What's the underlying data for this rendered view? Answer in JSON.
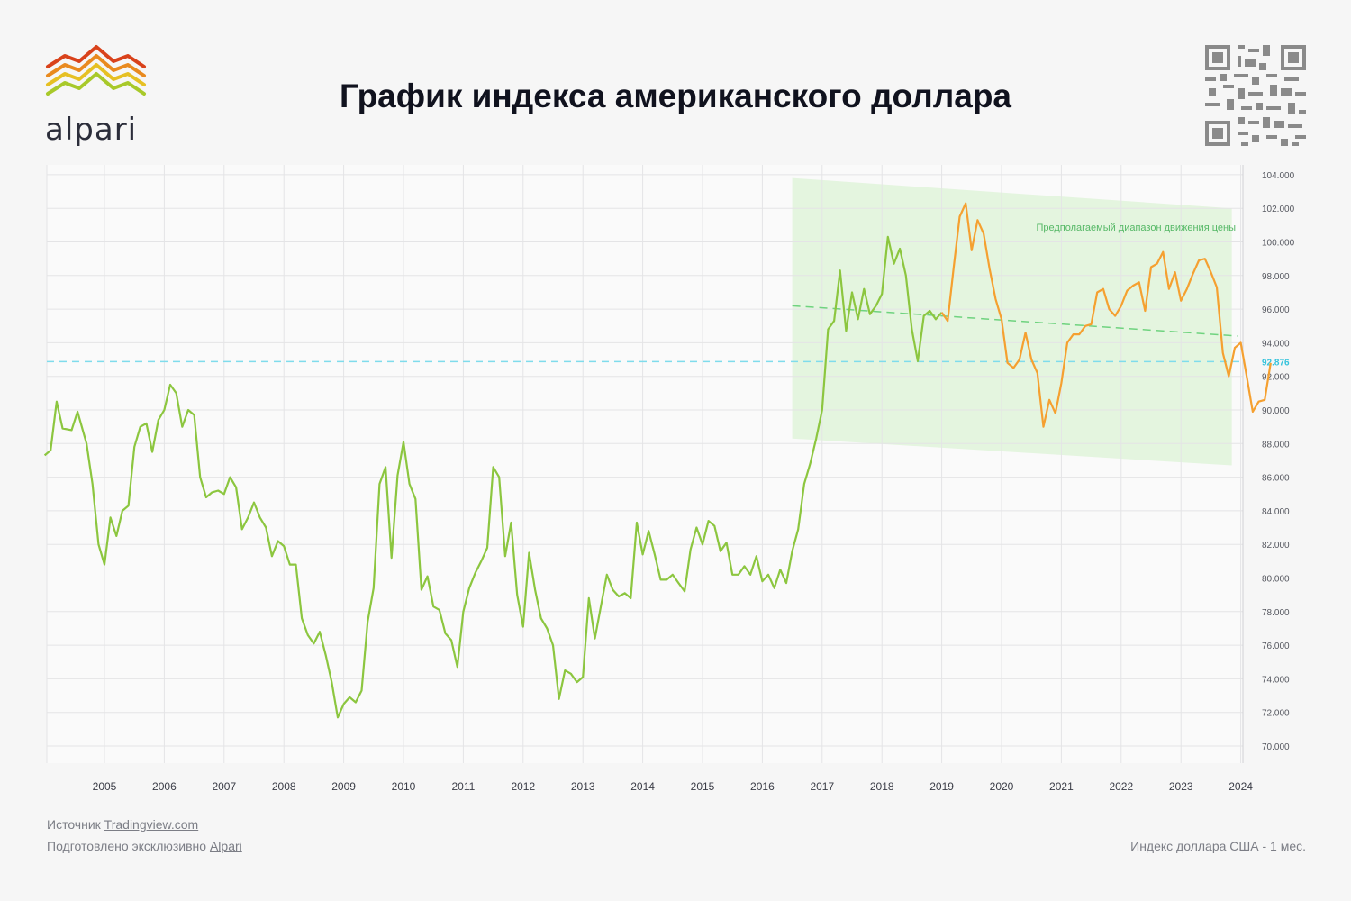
{
  "brand": {
    "name": "alpari",
    "colors": [
      "#d9421b",
      "#e98a1f",
      "#e6c023",
      "#a8c92a",
      "#7ab82f"
    ]
  },
  "header": {
    "title": "График индекса американского доллара"
  },
  "footer": {
    "source_label": "Источник",
    "source_link": "Tradingview.com",
    "prepared_label": "Подготовлено эксклюзивно",
    "prepared_link": "Alpari",
    "instrument": "Индекс доллара США - 1 мес."
  },
  "chart_data": {
    "type": "line",
    "title": "График индекса американского доллара",
    "xlabel": "",
    "ylabel": "",
    "x_range": [
      2004.0,
      2024.0
    ],
    "ylim": [
      69.0,
      105.0
    ],
    "x_ticks": [
      "2005",
      "2006",
      "2007",
      "2008",
      "2009",
      "2010",
      "2011",
      "2012",
      "2013",
      "2014",
      "2015",
      "2016",
      "2017",
      "2018",
      "2019",
      "2020",
      "2021",
      "2022",
      "2023",
      "2024"
    ],
    "y_ticks": [
      "70.000",
      "72.000",
      "74.000",
      "76.000",
      "78.000",
      "80.000",
      "82.000",
      "84.000",
      "86.000",
      "88.000",
      "90.000",
      "92.000",
      "94.000",
      "96.000",
      "98.000",
      "100.000",
      "102.000",
      "104.000"
    ],
    "grid": true,
    "colors": {
      "history": "#8cc63f",
      "recent": "#f5a030",
      "current_level": "#7fdcec",
      "trend": "#6fd37f",
      "range_fill": "#d2f0c8"
    },
    "current_level": {
      "value": 92.876,
      "label": "92.876"
    },
    "range_annotation": "Предполагаемый диапазон движения цены",
    "forecast_range": {
      "upper": [
        [
          2016.5,
          103.8
        ],
        [
          2023.85,
          102.0
        ]
      ],
      "lower": [
        [
          2016.5,
          88.3
        ],
        [
          2023.85,
          86.7
        ]
      ]
    },
    "trend_line": [
      [
        2016.5,
        96.2
      ],
      [
        2023.95,
        94.4
      ]
    ],
    "series": [
      {
        "values": [
          [
            2004.0,
            87.3
          ],
          [
            2004.1,
            87.6
          ],
          [
            2004.2,
            90.5
          ],
          [
            2004.3,
            88.9
          ],
          [
            2004.45,
            88.8
          ],
          [
            2004.55,
            89.9
          ],
          [
            2004.7,
            88.0
          ],
          [
            2004.8,
            85.6
          ],
          [
            2004.9,
            82.0
          ],
          [
            2005.0,
            80.8
          ],
          [
            2005.1,
            83.6
          ],
          [
            2005.2,
            82.5
          ],
          [
            2005.3,
            84.0
          ],
          [
            2005.4,
            84.3
          ],
          [
            2005.5,
            87.8
          ],
          [
            2005.6,
            89.0
          ],
          [
            2005.7,
            89.2
          ],
          [
            2005.8,
            87.5
          ],
          [
            2005.9,
            89.4
          ],
          [
            2006.0,
            90.0
          ],
          [
            2006.1,
            91.5
          ],
          [
            2006.2,
            91.0
          ],
          [
            2006.3,
            89.0
          ],
          [
            2006.4,
            90.0
          ],
          [
            2006.5,
            89.7
          ],
          [
            2006.6,
            86.0
          ],
          [
            2006.7,
            84.8
          ],
          [
            2006.8,
            85.1
          ],
          [
            2006.9,
            85.2
          ],
          [
            2007.0,
            85.0
          ],
          [
            2007.1,
            86.0
          ],
          [
            2007.2,
            85.4
          ],
          [
            2007.3,
            82.9
          ],
          [
            2007.4,
            83.6
          ],
          [
            2007.5,
            84.5
          ],
          [
            2007.6,
            83.6
          ],
          [
            2007.7,
            83.0
          ],
          [
            2007.8,
            81.3
          ],
          [
            2007.9,
            82.2
          ],
          [
            2008.0,
            81.9
          ],
          [
            2008.1,
            80.8
          ],
          [
            2008.2,
            80.8
          ],
          [
            2008.3,
            77.6
          ],
          [
            2008.4,
            76.6
          ],
          [
            2008.5,
            76.1
          ],
          [
            2008.6,
            76.8
          ],
          [
            2008.7,
            75.4
          ],
          [
            2008.8,
            73.8
          ],
          [
            2008.9,
            71.7
          ],
          [
            2009.0,
            72.5
          ],
          [
            2009.1,
            72.9
          ],
          [
            2009.2,
            72.6
          ],
          [
            2009.3,
            73.3
          ],
          [
            2009.4,
            77.4
          ],
          [
            2009.5,
            79.4
          ],
          [
            2009.6,
            85.6
          ],
          [
            2009.7,
            86.6
          ],
          [
            2009.8,
            81.2
          ],
          [
            2009.9,
            86.1
          ],
          [
            2010.0,
            88.1
          ],
          [
            2010.1,
            85.6
          ],
          [
            2010.2,
            84.7
          ],
          [
            2010.3,
            79.3
          ],
          [
            2010.4,
            80.1
          ],
          [
            2010.5,
            78.3
          ],
          [
            2010.6,
            78.1
          ],
          [
            2010.7,
            76.7
          ],
          [
            2010.8,
            76.3
          ],
          [
            2010.9,
            74.7
          ],
          [
            2011.0,
            78.0
          ],
          [
            2011.1,
            79.4
          ],
          [
            2011.2,
            80.3
          ],
          [
            2011.3,
            81.0
          ],
          [
            2011.4,
            81.8
          ],
          [
            2011.5,
            86.6
          ],
          [
            2011.6,
            86.0
          ],
          [
            2011.7,
            81.3
          ],
          [
            2011.8,
            83.3
          ],
          [
            2011.9,
            79.0
          ],
          [
            2012.0,
            77.1
          ],
          [
            2012.1,
            81.5
          ],
          [
            2012.2,
            79.3
          ],
          [
            2012.3,
            77.6
          ],
          [
            2012.4,
            77.0
          ],
          [
            2012.5,
            76.0
          ],
          [
            2012.6,
            72.8
          ],
          [
            2012.7,
            74.5
          ],
          [
            2012.8,
            74.3
          ],
          [
            2012.9,
            73.8
          ],
          [
            2013.0,
            74.1
          ],
          [
            2013.1,
            78.8
          ],
          [
            2013.2,
            76.4
          ],
          [
            2013.3,
            78.3
          ],
          [
            2013.4,
            80.2
          ],
          [
            2013.5,
            79.3
          ],
          [
            2013.6,
            78.9
          ],
          [
            2013.7,
            79.1
          ],
          [
            2013.8,
            78.8
          ],
          [
            2013.9,
            83.3
          ],
          [
            2014.0,
            81.4
          ],
          [
            2014.1,
            82.8
          ],
          [
            2014.2,
            81.4
          ],
          [
            2014.3,
            79.9
          ],
          [
            2014.4,
            79.9
          ],
          [
            2014.5,
            80.2
          ],
          [
            2014.6,
            79.7
          ],
          [
            2014.7,
            79.2
          ],
          [
            2014.8,
            81.7
          ],
          [
            2014.9,
            83.0
          ],
          [
            2015.0,
            82.0
          ],
          [
            2015.1,
            83.4
          ],
          [
            2015.2,
            83.1
          ],
          [
            2015.3,
            81.6
          ],
          [
            2015.4,
            82.1
          ],
          [
            2015.5,
            80.2
          ],
          [
            2015.6,
            80.2
          ],
          [
            2015.7,
            80.7
          ],
          [
            2015.8,
            80.2
          ],
          [
            2015.9,
            81.3
          ],
          [
            2016.0,
            79.8
          ],
          [
            2016.1,
            80.2
          ],
          [
            2016.2,
            79.4
          ],
          [
            2016.3,
            80.5
          ],
          [
            2016.4,
            79.7
          ],
          [
            2016.5,
            81.6
          ],
          [
            2016.6,
            82.9
          ],
          [
            2016.7,
            85.6
          ],
          [
            2016.8,
            86.8
          ],
          [
            2016.9,
            88.3
          ],
          [
            2017.0,
            90.0
          ],
          [
            2017.1,
            94.8
          ],
          [
            2017.2,
            95.3
          ],
          [
            2017.3,
            98.3
          ],
          [
            2017.4,
            94.7
          ],
          [
            2017.5,
            97.0
          ],
          [
            2017.6,
            95.4
          ],
          [
            2017.7,
            97.2
          ],
          [
            2017.8,
            95.7
          ],
          [
            2017.9,
            96.2
          ],
          [
            2018.0,
            96.9
          ],
          [
            2018.1,
            100.3
          ],
          [
            2018.2,
            98.7
          ],
          [
            2018.3,
            99.6
          ],
          [
            2018.4,
            98.0
          ],
          [
            2018.5,
            94.8
          ],
          [
            2018.6,
            92.9
          ],
          [
            2018.7,
            95.6
          ],
          [
            2018.8,
            95.9
          ],
          [
            2018.9,
            95.4
          ],
          [
            2019.0,
            95.8
          ]
        ]
      },
      {
        "values": [
          [
            2019.0,
            95.8
          ],
          [
            2019.1,
            95.3
          ],
          [
            2019.2,
            98.5
          ],
          [
            2019.3,
            101.5
          ],
          [
            2019.4,
            102.3
          ],
          [
            2019.5,
            99.5
          ],
          [
            2019.6,
            101.3
          ],
          [
            2019.7,
            100.5
          ],
          [
            2019.8,
            98.4
          ],
          [
            2019.9,
            96.6
          ],
          [
            2020.0,
            95.4
          ],
          [
            2020.1,
            92.8
          ],
          [
            2020.2,
            92.5
          ],
          [
            2020.3,
            93.0
          ],
          [
            2020.4,
            94.6
          ],
          [
            2020.5,
            93.0
          ],
          [
            2020.6,
            92.2
          ],
          [
            2020.7,
            89.0
          ],
          [
            2020.8,
            90.6
          ],
          [
            2020.9,
            89.8
          ],
          [
            2021.0,
            91.6
          ],
          [
            2021.1,
            94.0
          ],
          [
            2021.2,
            94.5
          ],
          [
            2021.3,
            94.5
          ],
          [
            2021.4,
            95.0
          ],
          [
            2021.5,
            95.1
          ],
          [
            2021.6,
            97.0
          ],
          [
            2021.7,
            97.2
          ],
          [
            2021.8,
            96.0
          ],
          [
            2021.9,
            95.6
          ],
          [
            2022.0,
            96.2
          ],
          [
            2022.1,
            97.1
          ],
          [
            2022.2,
            97.4
          ],
          [
            2022.3,
            97.6
          ],
          [
            2022.4,
            95.9
          ],
          [
            2022.5,
            98.5
          ],
          [
            2022.6,
            98.7
          ],
          [
            2022.7,
            99.4
          ],
          [
            2022.8,
            97.2
          ],
          [
            2022.9,
            98.2
          ],
          [
            2023.0,
            96.5
          ],
          [
            2023.1,
            97.2
          ],
          [
            2023.2,
            98.1
          ],
          [
            2023.3,
            98.9
          ],
          [
            2023.4,
            99.0
          ],
          [
            2023.5,
            98.2
          ],
          [
            2023.6,
            97.3
          ],
          [
            2023.7,
            93.4
          ],
          [
            2023.8,
            92.0
          ],
          [
            2023.9,
            93.7
          ],
          [
            2024.0,
            94.0
          ],
          [
            2024.1,
            92.0
          ],
          [
            2024.2,
            89.9
          ],
          [
            2024.3,
            90.5
          ],
          [
            2024.4,
            90.6
          ],
          [
            2024.5,
            92.8
          ]
        ]
      }
    ]
  }
}
